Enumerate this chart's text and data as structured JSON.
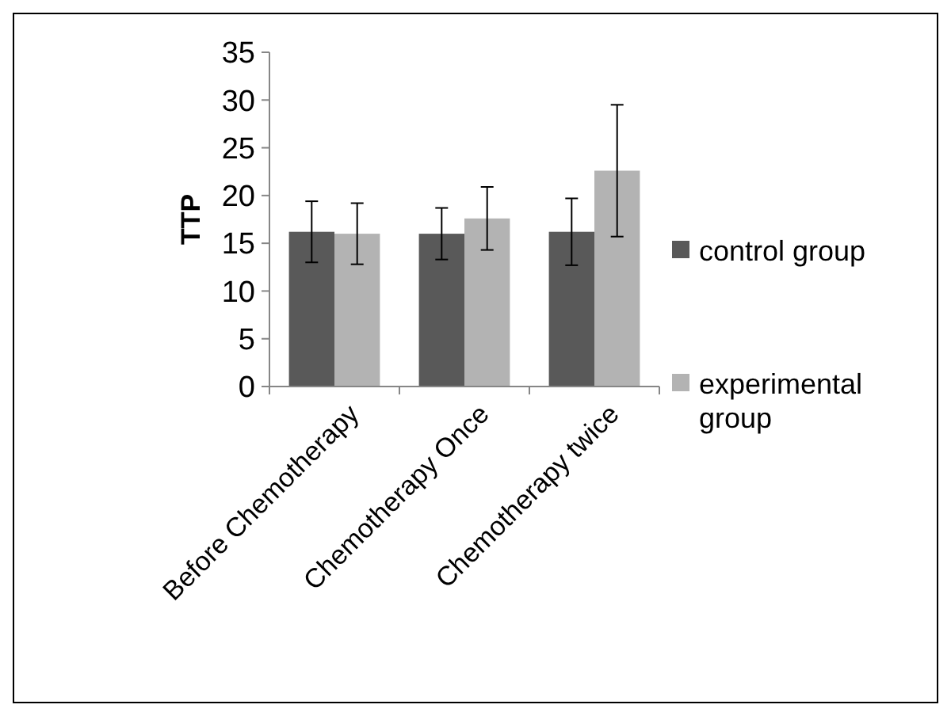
{
  "chart_data": {
    "type": "bar",
    "ylabel": "TTP",
    "categories": [
      "Before Chemotherapy",
      "Chemotherapy Once",
      "Chemotherapy twice"
    ],
    "series": [
      {
        "name": "control group",
        "color": "#595959",
        "values": [
          16.2,
          16.0,
          16.2
        ],
        "errors": [
          3.2,
          2.7,
          3.5
        ]
      },
      {
        "name": "experimental group",
        "color": "#b3b3b3",
        "values": [
          16.0,
          17.6,
          22.6
        ],
        "errors": [
          3.2,
          3.3,
          6.9
        ]
      }
    ],
    "ylim": [
      0,
      35
    ],
    "yticks": [
      0,
      5,
      10,
      15,
      20,
      25,
      30,
      35
    ],
    "grid": false,
    "legend": "right"
  }
}
